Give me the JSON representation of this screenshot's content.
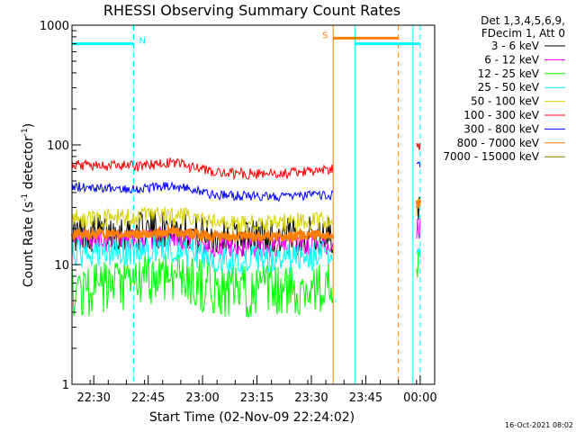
{
  "chart_data": {
    "type": "line",
    "title": "RHESSI Observing Summary Count Rates",
    "xlabel": "Start Time (02-Nov-09 22:24:02)",
    "ylabel": "Count Rate (s",
    "ylabel_sup": "-1",
    "ylabel_mid": " detector",
    "ylabel_end": ")",
    "y_scale": "log",
    "ylim": [
      1,
      1000
    ],
    "y_ticks": [
      "1",
      "10",
      "100",
      "1000"
    ],
    "x_range": [
      "22:24",
      "00:04"
    ],
    "x_ticks": [
      "22:30",
      "22:45",
      "23:00",
      "23:15",
      "23:30",
      "23:45",
      "00:00"
    ],
    "legend_header": [
      "Det 1,3,4,5,6,9,",
      "FDecim 1, Att 0"
    ],
    "legend_position": "right",
    "timestamp": "16-Oct-2021 08:02",
    "series": [
      {
        "name": "3 - 6 keV",
        "color": "#000000",
        "noise": 0.32,
        "segments": [
          {
            "start": "22:24",
            "end": "23:36",
            "points": [
              [
                0,
                18
              ],
              [
                0.25,
                19
              ],
              [
                0.38,
                20
              ],
              [
                0.55,
                17
              ],
              [
                0.8,
                17
              ],
              [
                1,
                18
              ]
            ]
          },
          {
            "start": "23:59",
            "end": "00:00",
            "points": [
              [
                0,
                26
              ],
              [
                1,
                26
              ]
            ]
          }
        ]
      },
      {
        "name": "6 - 12 keV",
        "color": "#ff00ff",
        "noise": 0.2,
        "segments": [
          {
            "start": "22:24",
            "end": "23:36",
            "points": [
              [
                0,
                15
              ],
              [
                0.25,
                16
              ],
              [
                0.38,
                17
              ],
              [
                0.55,
                14
              ],
              [
                0.8,
                14
              ],
              [
                1,
                15
              ]
            ]
          },
          {
            "start": "23:59",
            "end": "00:00",
            "points": [
              [
                0,
                20
              ],
              [
                1,
                20
              ]
            ]
          }
        ]
      },
      {
        "name": "12 - 25 keV",
        "color": "#00ff00",
        "noise": 0.45,
        "segments": [
          {
            "start": "22:24",
            "end": "23:36",
            "points": [
              [
                0,
                6
              ],
              [
                0.2,
                6.5
              ],
              [
                0.38,
                8.5
              ],
              [
                0.55,
                6
              ],
              [
                0.8,
                6
              ],
              [
                1,
                6.5
              ]
            ]
          },
          {
            "start": "23:59",
            "end": "00:00",
            "points": [
              [
                0,
                9
              ],
              [
                1,
                8
              ]
            ]
          }
        ]
      },
      {
        "name": "25 - 50 keV",
        "color": "#00ffff",
        "noise": 0.25,
        "segments": [
          {
            "start": "22:24",
            "end": "23:36",
            "points": [
              [
                0,
                12
              ],
              [
                0.25,
                13
              ],
              [
                0.38,
                14
              ],
              [
                0.55,
                11
              ],
              [
                0.8,
                11
              ],
              [
                1,
                12
              ]
            ]
          },
          {
            "start": "23:59",
            "end": "00:00",
            "points": [
              [
                0,
                15
              ],
              [
                1,
                14
              ]
            ]
          }
        ]
      },
      {
        "name": "50 - 100 keV",
        "color": "#d8d000",
        "noise": 0.16,
        "segments": [
          {
            "start": "22:24",
            "end": "23:36",
            "points": [
              [
                0,
                24
              ],
              [
                0.25,
                25
              ],
              [
                0.38,
                26
              ],
              [
                0.55,
                22
              ],
              [
                0.8,
                22
              ],
              [
                1,
                24
              ]
            ]
          },
          {
            "start": "23:59",
            "end": "00:00",
            "points": [
              [
                0,
                30
              ],
              [
                1,
                30
              ]
            ]
          }
        ]
      },
      {
        "name": "100 - 300 keV",
        "color": "#ff0000",
        "noise": 0.09,
        "segments": [
          {
            "start": "22:24",
            "end": "23:36",
            "points": [
              [
                0,
                68
              ],
              [
                0.25,
                66
              ],
              [
                0.38,
                72
              ],
              [
                0.55,
                58
              ],
              [
                0.8,
                57
              ],
              [
                1,
                62
              ]
            ]
          },
          {
            "start": "23:59",
            "end": "00:00",
            "points": [
              [
                0,
                100
              ],
              [
                1,
                98
              ]
            ]
          }
        ]
      },
      {
        "name": "300 - 800 keV",
        "color": "#0000ff",
        "noise": 0.08,
        "segments": [
          {
            "start": "22:24",
            "end": "23:36",
            "points": [
              [
                0,
                45
              ],
              [
                0.25,
                43
              ],
              [
                0.38,
                46
              ],
              [
                0.55,
                38
              ],
              [
                0.8,
                37
              ],
              [
                1,
                38
              ]
            ]
          },
          {
            "start": "23:59",
            "end": "00:00",
            "points": [
              [
                0,
                70
              ],
              [
                1,
                68
              ]
            ]
          }
        ]
      },
      {
        "name": "800 - 7000 keV",
        "color": "#ff8000",
        "noise": 0.08,
        "segments": [
          {
            "start": "22:24",
            "end": "23:36",
            "points": [
              [
                0,
                18
              ],
              [
                0.25,
                18
              ],
              [
                0.38,
                19
              ],
              [
                0.55,
                17
              ],
              [
                0.8,
                17
              ],
              [
                1,
                18
              ]
            ]
          },
          {
            "start": "23:59",
            "end": "00:00",
            "points": [
              [
                0,
                33
              ],
              [
                1,
                32
              ]
            ]
          }
        ]
      },
      {
        "name": "7000 - 15000 keV",
        "color": "#808000",
        "noise": 0,
        "segments": []
      }
    ],
    "flags": [
      {
        "label": "N",
        "color": "#00ffff",
        "value": 700,
        "start": "22:24",
        "end": "22:41"
      },
      {
        "label": "S",
        "color": "#ff8000",
        "value": 780,
        "start": "23:36",
        "end": "23:54"
      },
      {
        "label": "",
        "color": "#00ffff",
        "value": 700,
        "start": "23:42",
        "end": "00:00"
      }
    ],
    "markers": [
      {
        "time": "22:24",
        "color": "#00ffff",
        "style": "solid"
      },
      {
        "time": "22:41",
        "color": "#00ffff",
        "style": "dashed"
      },
      {
        "time": "23:36",
        "color": "#ff8000",
        "style": "solid"
      },
      {
        "time": "23:42",
        "color": "#00ffff",
        "style": "solid"
      },
      {
        "time": "23:54",
        "color": "#ff8000",
        "style": "dashed"
      },
      {
        "time": "23:58",
        "color": "#00ffff",
        "style": "solid"
      },
      {
        "time": "00:00",
        "color": "#00ffff",
        "style": "dashed"
      }
    ]
  }
}
